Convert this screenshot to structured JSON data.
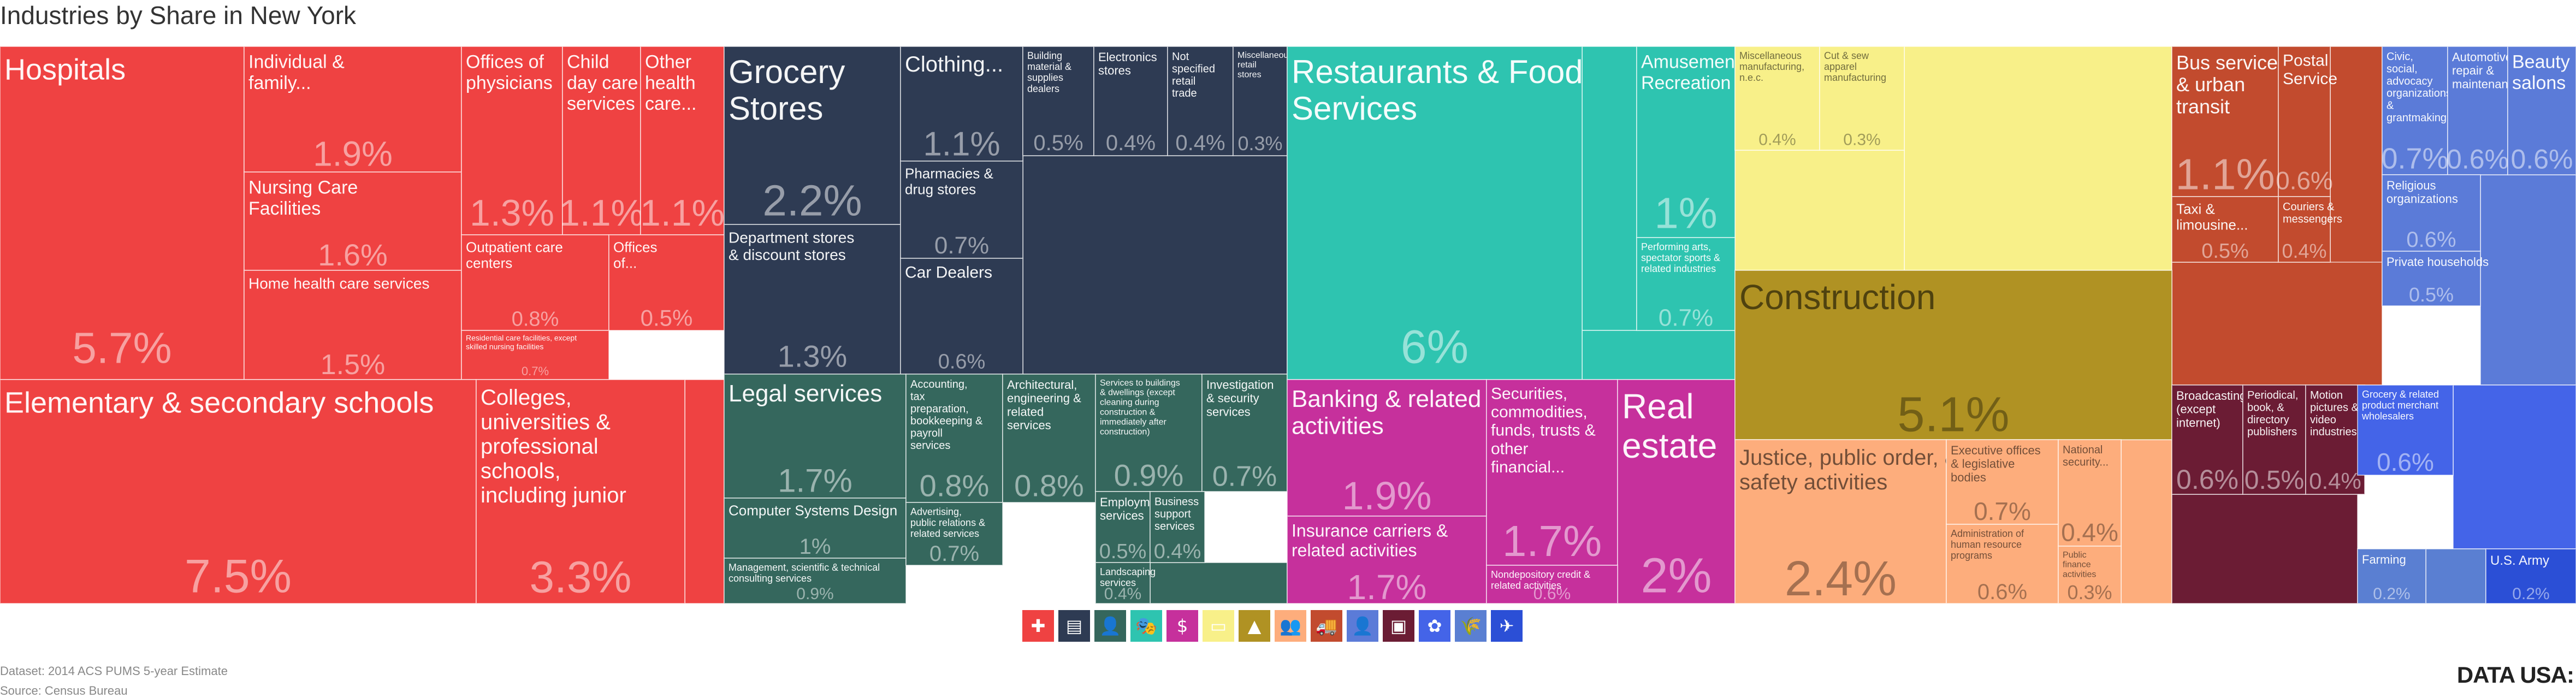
{
  "title": "Industries by Share in New York",
  "footer": {
    "dataset": "Dataset: 2014 ACS PUMS 5-year Estimate",
    "source": "Source: Census Bureau",
    "logo": "DATA USA:"
  },
  "legend_icons": [
    {
      "name": "health-icon",
      "glyph": "✚",
      "color": "#ef4242"
    },
    {
      "name": "retail-icon",
      "glyph": "▤",
      "color": "#2e3b53"
    },
    {
      "name": "professional-icon",
      "glyph": "👤",
      "color": "#35675d"
    },
    {
      "name": "arts-icon",
      "glyph": "🎭",
      "color": "#2ec4b0"
    },
    {
      "name": "finance-icon",
      "glyph": "$",
      "color": "#c6309c"
    },
    {
      "name": "manufacturing-icon",
      "glyph": "▭",
      "color": "#f8f089"
    },
    {
      "name": "construction-icon",
      "glyph": "▲",
      "color": "#b09223"
    },
    {
      "name": "public-admin-icon",
      "glyph": "👥",
      "color": "#fdad7c"
    },
    {
      "name": "transport-icon",
      "glyph": "🚚",
      "color": "#c24b2e"
    },
    {
      "name": "other-services-icon",
      "glyph": "👤",
      "color": "#5b7bd8"
    },
    {
      "name": "information-icon",
      "glyph": "▣",
      "color": "#6b1c34"
    },
    {
      "name": "wholesale-icon",
      "glyph": "✿",
      "color": "#4464e8"
    },
    {
      "name": "agriculture-icon",
      "glyph": "🌾",
      "color": "#5a7fd2"
    },
    {
      "name": "military-icon",
      "glyph": "✈",
      "color": "#2b4fd6"
    }
  ],
  "chart_data": {
    "type": "treemap",
    "title": "Industries by Share in New York",
    "groups": [
      {
        "group": "health",
        "color": "#ef4242",
        "items": [
          {
            "label": "Hospitals",
            "value": 5.7
          },
          {
            "label": "Individual & family...",
            "value": 1.9
          },
          {
            "label": "Nursing Care Facilities",
            "value": 1.6
          },
          {
            "label": "Home health care services",
            "value": 1.5
          },
          {
            "label": "Offices of physicians",
            "value": 1.3
          },
          {
            "label": "Child day care services",
            "value": 1.1
          },
          {
            "label": "Other health care...",
            "value": 1.1
          },
          {
            "label": "Outpatient care centers",
            "value": 0.8
          },
          {
            "label": "Offices of...",
            "value": 0.5
          },
          {
            "label": "Residential care facilities, except skilled nursing facilities",
            "value": 0.7
          },
          {
            "label": "Elementary & secondary schools",
            "value": 7.5
          },
          {
            "label": "Colleges, universities & professional schools, including junior colleges",
            "value": 3.3
          }
        ]
      },
      {
        "group": "retail",
        "color": "#2e3b53",
        "items": [
          {
            "label": "Grocery Stores",
            "value": 2.2
          },
          {
            "label": "Department stores & discount stores",
            "value": 1.3
          },
          {
            "label": "Clothing...",
            "value": 1.1
          },
          {
            "label": "Pharmacies & drug stores",
            "value": 0.7
          },
          {
            "label": "Car Dealers",
            "value": 0.6
          },
          {
            "label": "Building material & supplies dealers",
            "value": 0.5
          },
          {
            "label": "Electronics stores",
            "value": 0.4
          },
          {
            "label": "Not specified retail trade",
            "value": 0.4
          },
          {
            "label": "Miscellaneous retail stores",
            "value": 0.3
          }
        ]
      },
      {
        "group": "professional",
        "color": "#35675d",
        "items": [
          {
            "label": "Legal services",
            "value": 1.7
          },
          {
            "label": "Computer Systems Design",
            "value": 1.0
          },
          {
            "label": "Management, scientific & technical consulting services",
            "value": 0.9
          },
          {
            "label": "Accounting, tax preparation, bookkeeping & payroll services",
            "value": 0.8
          },
          {
            "label": "Architectural, engineering & related services",
            "value": 0.8
          },
          {
            "label": "Services to buildings & dwellings (except cleaning during construction & immediately after construction)",
            "value": 0.9
          },
          {
            "label": "Investigation & security services",
            "value": 0.7
          },
          {
            "label": "Advertising, public relations & related services",
            "value": 0.7
          },
          {
            "label": "Employment services",
            "value": 0.5
          },
          {
            "label": "Business support services",
            "value": 0.4
          },
          {
            "label": "Landscaping services",
            "value": 0.4
          }
        ]
      },
      {
        "group": "arts-food",
        "color": "#2ec4b0",
        "items": [
          {
            "label": "Restaurants & Food Services",
            "value": 6.0
          },
          {
            "label": "Amusement & Recreation",
            "value": 1.0
          },
          {
            "label": "Performing arts, spectator sports & related industries",
            "value": 0.7
          }
        ]
      },
      {
        "group": "finance",
        "color": "#c6309c",
        "items": [
          {
            "label": "Banking & related activities",
            "value": 1.9
          },
          {
            "label": "Insurance carriers & related activities",
            "value": 1.7
          },
          {
            "label": "Securities, commodities, funds, trusts & other financial...",
            "value": 1.7
          },
          {
            "label": "Real estate",
            "value": 2.0
          },
          {
            "label": "Nondepository credit & related activities",
            "value": 0.6
          }
        ]
      },
      {
        "group": "manufacturing",
        "color": "#f8f089",
        "items": [
          {
            "label": "Miscellaneous manufacturing, n.e.c.",
            "value": 0.4
          },
          {
            "label": "Cut & sew apparel manufacturing",
            "value": 0.3
          }
        ]
      },
      {
        "group": "construction",
        "color": "#b09223",
        "items": [
          {
            "label": "Construction",
            "value": 5.1
          }
        ]
      },
      {
        "group": "public-admin",
        "color": "#fdad7c",
        "items": [
          {
            "label": "Justice, public order, & safety activities",
            "value": 2.4
          },
          {
            "label": "Executive offices & legislative bodies",
            "value": 0.7
          },
          {
            "label": "Administration of human resource programs",
            "value": 0.6
          },
          {
            "label": "National security...",
            "value": 0.4
          },
          {
            "label": "Public finance activities",
            "value": 0.3
          }
        ]
      },
      {
        "group": "transport",
        "color": "#c24b2e",
        "items": [
          {
            "label": "Bus service & urban transit",
            "value": 1.1
          },
          {
            "label": "Postal Service",
            "value": 0.6
          },
          {
            "label": "Taxi & limousine...",
            "value": 0.5
          },
          {
            "label": "Couriers & messengers",
            "value": 0.4
          }
        ]
      },
      {
        "group": "other-services",
        "color": "#5b7bd8",
        "items": [
          {
            "label": "Civic, social, advocacy organizations, & grantmaking & giving services",
            "value": 0.7
          },
          {
            "label": "Automotive repair & maintenance",
            "value": 0.6
          },
          {
            "label": "Beauty salons",
            "value": 0.6
          },
          {
            "label": "Religious organizations",
            "value": 0.6
          },
          {
            "label": "Private households",
            "value": 0.5
          }
        ]
      },
      {
        "group": "information",
        "color": "#6b1c34",
        "items": [
          {
            "label": "Broadcasting (except internet)",
            "value": 0.6
          },
          {
            "label": "Periodical, book, & directory publishers",
            "value": 0.5
          },
          {
            "label": "Motion pictures & video industries",
            "value": 0.4
          }
        ]
      },
      {
        "group": "wholesale",
        "color": "#4464e8",
        "items": [
          {
            "label": "Grocery & related product merchant wholesalers",
            "value": 0.6
          }
        ]
      },
      {
        "group": "agriculture",
        "color": "#5a7fd2",
        "items": [
          {
            "label": "Farming",
            "value": 0.2
          }
        ]
      },
      {
        "group": "military",
        "color": "#2b4fd6",
        "items": [
          {
            "label": "U.S. Army",
            "value": 0.2
          }
        ]
      }
    ]
  }
}
